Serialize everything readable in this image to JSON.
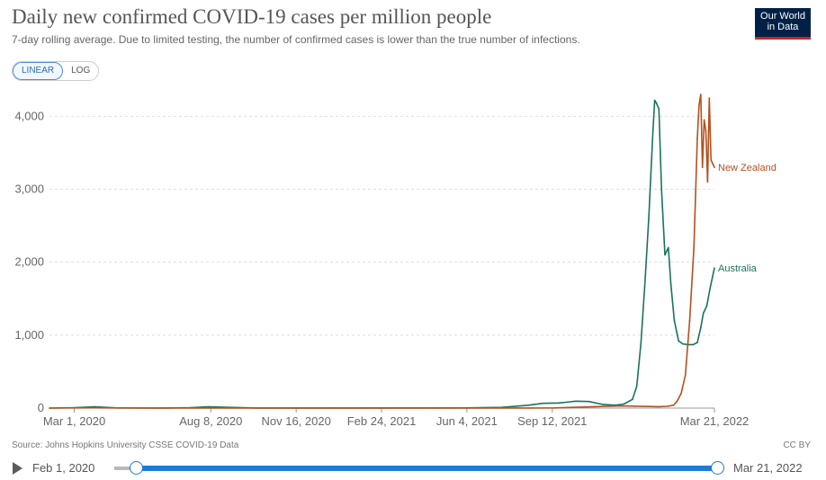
{
  "header": {
    "title": "Daily new confirmed COVID-19 cases per million people",
    "subtitle": "7-day rolling average. Due to limited testing, the number of confirmed cases is lower than the true number of infections.",
    "logo_line1": "Our World",
    "logo_line2": "in Data"
  },
  "scale_toggle": {
    "linear_label": "LINEAR",
    "log_label": "LOG",
    "selected": "LINEAR"
  },
  "footer": {
    "source": "Source: Johns Hopkins University CSSE COVID-19 Data",
    "license": "CC BY"
  },
  "timeline": {
    "start_label": "Feb 1, 2020",
    "end_label": "Mar 21, 2022"
  },
  "chart_data": {
    "type": "line",
    "title": "Daily new confirmed COVID-19 cases per million people",
    "subtitle": "7-day rolling average. Due to limited testing, the number of confirmed cases is lower than the true number of infections.",
    "xlabel": "",
    "ylabel": "",
    "x_range": [
      "2020-02-01",
      "2022-03-21"
    ],
    "ylim": [
      0,
      4300
    ],
    "y_ticks": [
      0,
      1000,
      2000,
      3000,
      4000
    ],
    "y_tick_labels": [
      "0",
      "1,000",
      "2,000",
      "3,000",
      "4,000"
    ],
    "x_ticks": [
      "2020-03-01",
      "2020-08-08",
      "2020-11-16",
      "2021-02-24",
      "2021-06-04",
      "2021-09-12",
      "2022-03-21"
    ],
    "x_tick_labels": [
      "Mar 1, 2020",
      "Aug 8, 2020",
      "Nov 16, 2020",
      "Feb 24, 2021",
      "Jun 4, 2021",
      "Sep 12, 2021",
      "Mar 21, 2022"
    ],
    "grid": "horizontal dashed",
    "legend": "labels at line ends",
    "series": [
      {
        "name": "Australia",
        "color": "#18735e",
        "x": [
          "2020-02-01",
          "2020-03-01",
          "2020-03-25",
          "2020-04-20",
          "2020-06-15",
          "2020-07-15",
          "2020-08-05",
          "2020-08-30",
          "2020-10-01",
          "2021-01-01",
          "2021-06-01",
          "2021-07-15",
          "2021-08-15",
          "2021-09-01",
          "2021-09-20",
          "2021-10-10",
          "2021-10-25",
          "2021-11-10",
          "2021-11-25",
          "2021-12-05",
          "2021-12-15",
          "2021-12-20",
          "2021-12-25",
          "2021-12-30",
          "2022-01-03",
          "2022-01-08",
          "2022-01-10",
          "2022-01-12",
          "2022-01-15",
          "2022-01-18",
          "2022-01-22",
          "2022-01-26",
          "2022-01-29",
          "2022-02-02",
          "2022-02-07",
          "2022-02-12",
          "2022-02-18",
          "2022-02-24",
          "2022-03-01",
          "2022-03-05",
          "2022-03-08",
          "2022-03-12",
          "2022-03-16",
          "2022-03-21"
        ],
        "y": [
          0,
          5,
          18,
          2,
          1,
          6,
          18,
          10,
          1,
          1,
          2,
          10,
          40,
          65,
          70,
          95,
          90,
          50,
          40,
          55,
          120,
          300,
          900,
          1800,
          2600,
          3800,
          4220,
          4180,
          4100,
          3000,
          2100,
          2200,
          1700,
          1200,
          920,
          880,
          870,
          870,
          900,
          1100,
          1300,
          1400,
          1650,
          1920
        ]
      },
      {
        "name": "New Zealand",
        "color": "#b3511e",
        "x": [
          "2020-02-01",
          "2020-03-25",
          "2020-04-15",
          "2020-06-01",
          "2021-08-15",
          "2021-09-15",
          "2021-11-01",
          "2021-12-01",
          "2022-01-15",
          "2022-01-25",
          "2022-02-01",
          "2022-02-05",
          "2022-02-10",
          "2022-02-15",
          "2022-02-20",
          "2022-02-25",
          "2022-03-01",
          "2022-03-03",
          "2022-03-05",
          "2022-03-07",
          "2022-03-09",
          "2022-03-11",
          "2022-03-13",
          "2022-03-15",
          "2022-03-17",
          "2022-03-19",
          "2022-03-21"
        ],
        "y": [
          0,
          4,
          2,
          0,
          1,
          3,
          20,
          30,
          20,
          25,
          40,
          90,
          200,
          450,
          1200,
          2200,
          3700,
          4150,
          4300,
          3300,
          3950,
          3800,
          3100,
          4250,
          3400,
          3350,
          3300
        ]
      }
    ]
  }
}
